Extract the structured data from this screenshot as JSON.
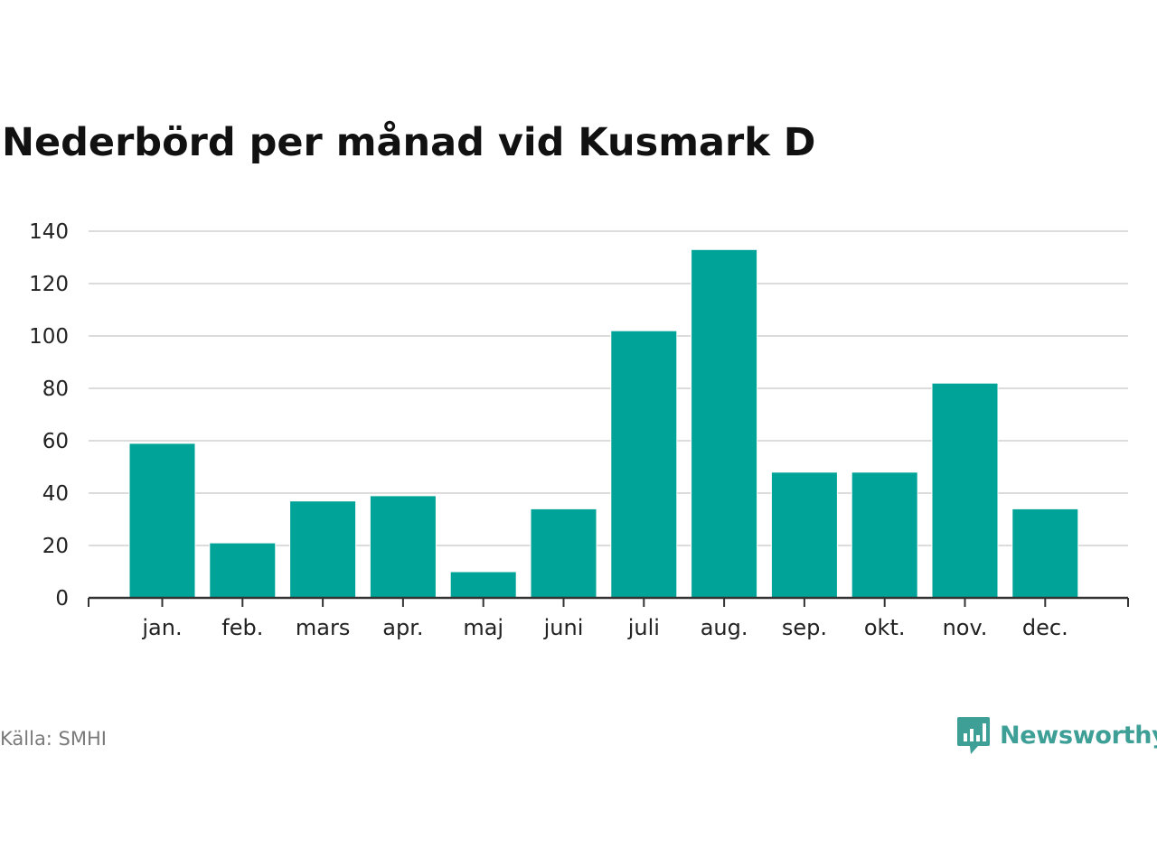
{
  "chart_data": {
    "type": "bar",
    "title": "Nederbörd per månad vid Kusmark D",
    "categories": [
      "jan.",
      "feb.",
      "mars",
      "apr.",
      "maj",
      "juni",
      "juli",
      "aug.",
      "sep.",
      "okt.",
      "nov.",
      "dec."
    ],
    "values": [
      59,
      21,
      37,
      39,
      10,
      34,
      102,
      133,
      48,
      48,
      82,
      34
    ],
    "yticks": [
      0,
      20,
      40,
      60,
      80,
      100,
      120,
      140
    ],
    "ylim": [
      0,
      140
    ],
    "xlabel": "",
    "ylabel": "",
    "grid": true,
    "bar_color": "#00a398"
  },
  "footer": {
    "source": "Källa: SMHI",
    "brand": "Newsworthy",
    "brand_color": "#3e9f97"
  }
}
